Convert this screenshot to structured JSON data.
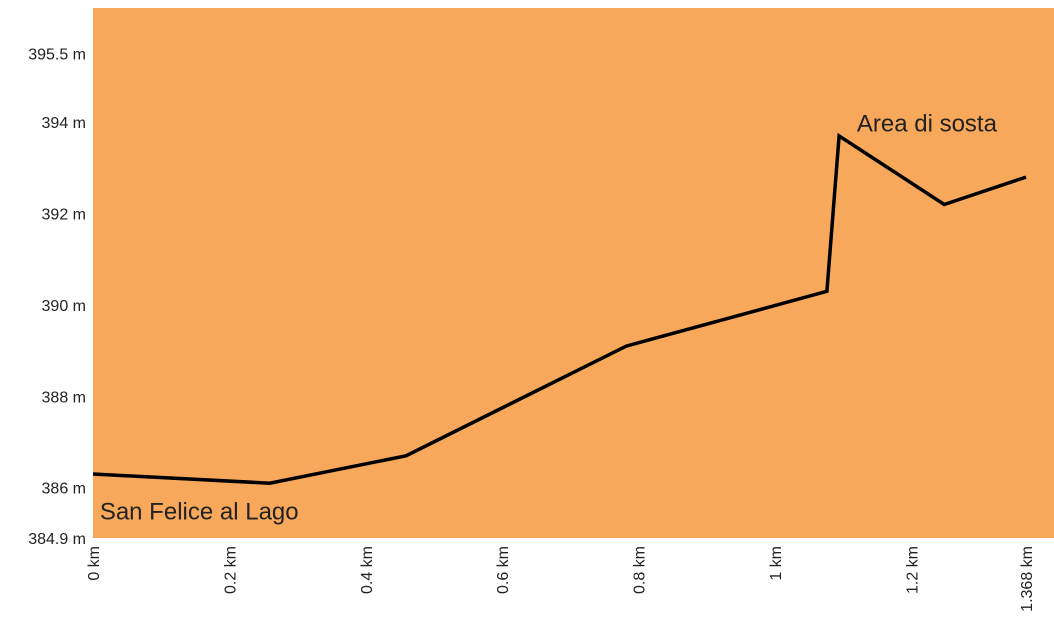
{
  "chart_data": {
    "type": "line",
    "background_color": "#F8A85A",
    "line_color": "#000000",
    "grid": false,
    "legend": "none",
    "ylim": [
      384.9,
      396.5
    ],
    "xlim": [
      0,
      1.368
    ],
    "yticks": [
      {
        "value": 384.9,
        "label": "384.9 m"
      },
      {
        "value": 386,
        "label": "386 m"
      },
      {
        "value": 388,
        "label": "388 m"
      },
      {
        "value": 390,
        "label": "390 m"
      },
      {
        "value": 392,
        "label": "392 m"
      },
      {
        "value": 394,
        "label": "394 m"
      },
      {
        "value": 395.5,
        "label": "395.5 m"
      }
    ],
    "xticks": [
      {
        "value": 0,
        "label": "0 km"
      },
      {
        "value": 0.2,
        "label": "0.2 km"
      },
      {
        "value": 0.4,
        "label": "0.4 km"
      },
      {
        "value": 0.6,
        "label": "0.6 km"
      },
      {
        "value": 0.8,
        "label": "0.8 km"
      },
      {
        "value": 1.0,
        "label": "1 km"
      },
      {
        "value": 1.2,
        "label": "1.2 km"
      },
      {
        "value": 1.368,
        "label": "1.368 km"
      }
    ],
    "series": [
      {
        "x": [
          0,
          0.259,
          0.459,
          0.782,
          1.076,
          1.094,
          1.248,
          1.368
        ],
        "y": [
          386.3,
          386.1,
          386.7,
          389.1,
          390.3,
          393.7,
          392.2,
          392.8
        ]
      }
    ],
    "annotations": [
      {
        "text": "San Felice al Lago",
        "x": 0.01,
        "y": 385.3
      },
      {
        "text": "Area di sosta",
        "x": 1.12,
        "y": 393.8
      }
    ]
  }
}
